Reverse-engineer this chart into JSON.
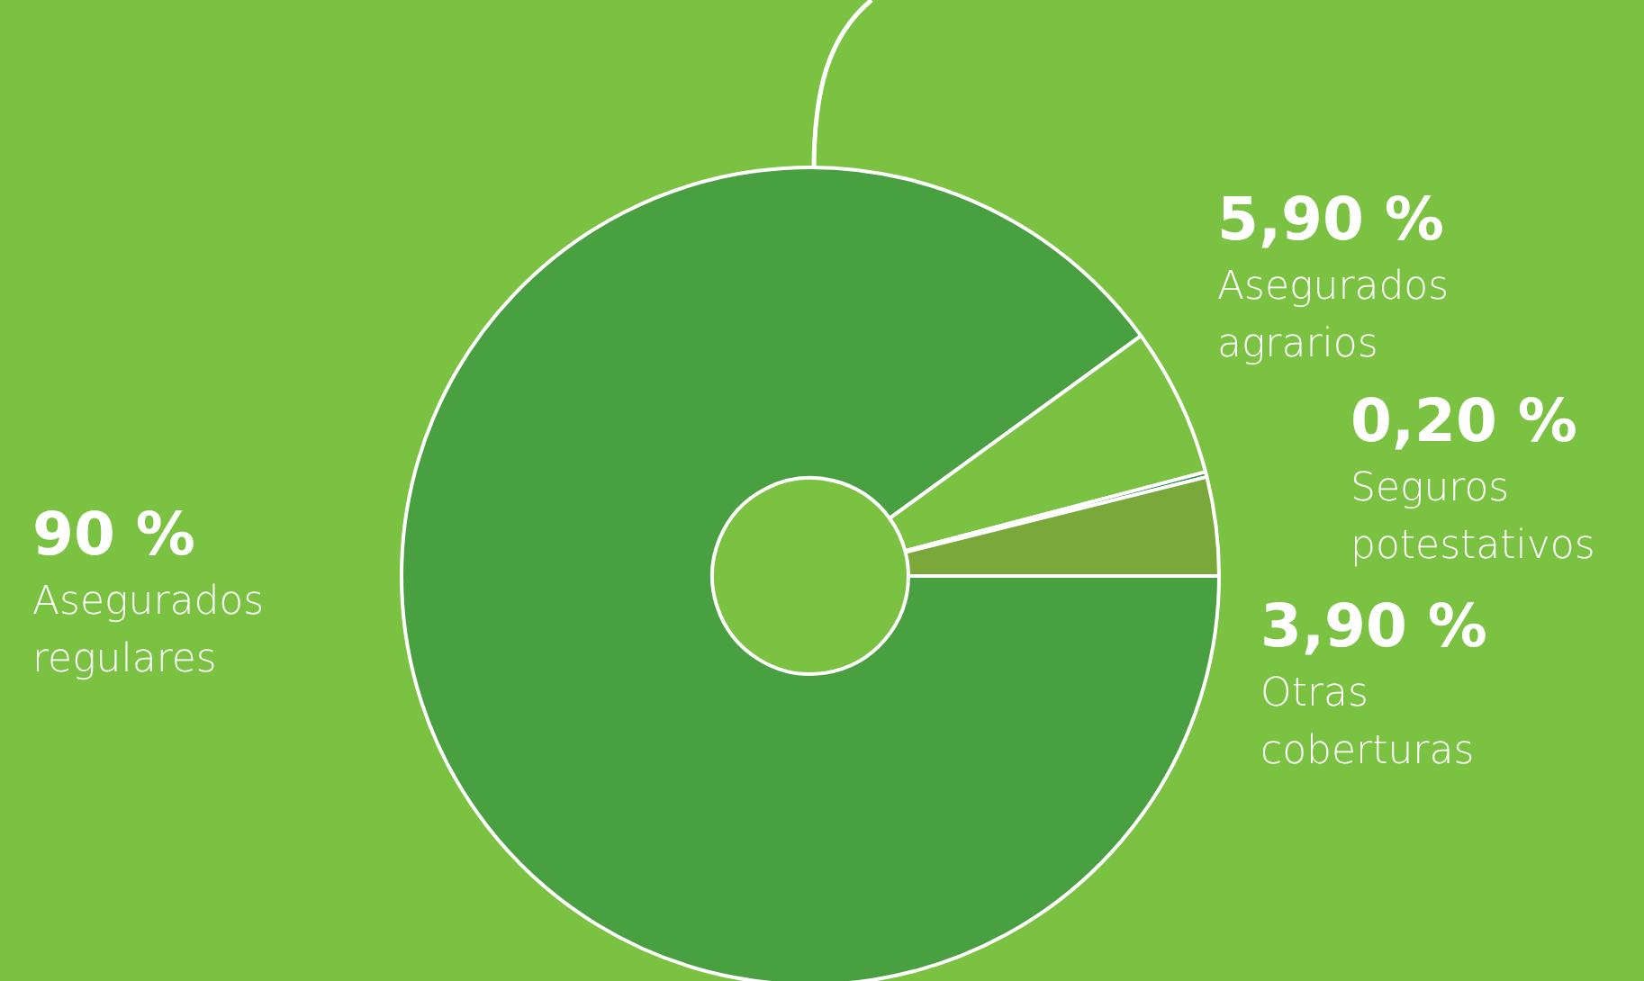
{
  "chart_data": {
    "type": "donut",
    "categories": [
      "Asegurados regulares",
      "Asegurados agrarios",
      "Seguros potestativos",
      "Otras coberturas"
    ],
    "values": [
      90,
      5.9,
      0.2,
      3.9
    ],
    "value_labels": [
      "90 %",
      "5,90 %",
      "0,20 %",
      "3,90 %"
    ],
    "colors": [
      "#48a040",
      "#7bc142",
      "#2e8b4e",
      "#7aa83a"
    ],
    "legend": false
  }
}
